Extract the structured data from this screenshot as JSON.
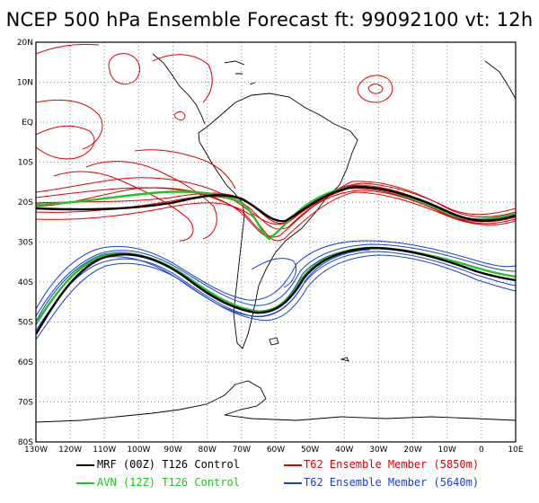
{
  "title": "NCEP 500 hPa Ensemble Forecast   ft: 99092100 vt: 12h",
  "colors": {
    "frame": "#000000",
    "grid": "#888888",
    "coast": "#000000",
    "mrf": "#000000",
    "avn": "#22c322",
    "member5850": "#e00000",
    "member5640": "#1a3fd6"
  },
  "axes": {
    "lat_labels": [
      "20N",
      "10N",
      "EQ",
      "10S",
      "20S",
      "30S",
      "40S",
      "50S",
      "60S",
      "70S",
      "80S"
    ],
    "lon_labels": [
      "130W",
      "120W",
      "110W",
      "100W",
      "90W",
      "80W",
      "70W",
      "60W",
      "50W",
      "40W",
      "30W",
      "20W",
      "10W",
      "0",
      "10E"
    ]
  },
  "legend": {
    "mrf": "MRF (00Z) T126 Control",
    "avn": "AVN (12Z) T126 Control",
    "member5850": "T62 Ensemble Member (5850m)",
    "member5640": "T62 Ensemble Member (5640m)"
  }
}
